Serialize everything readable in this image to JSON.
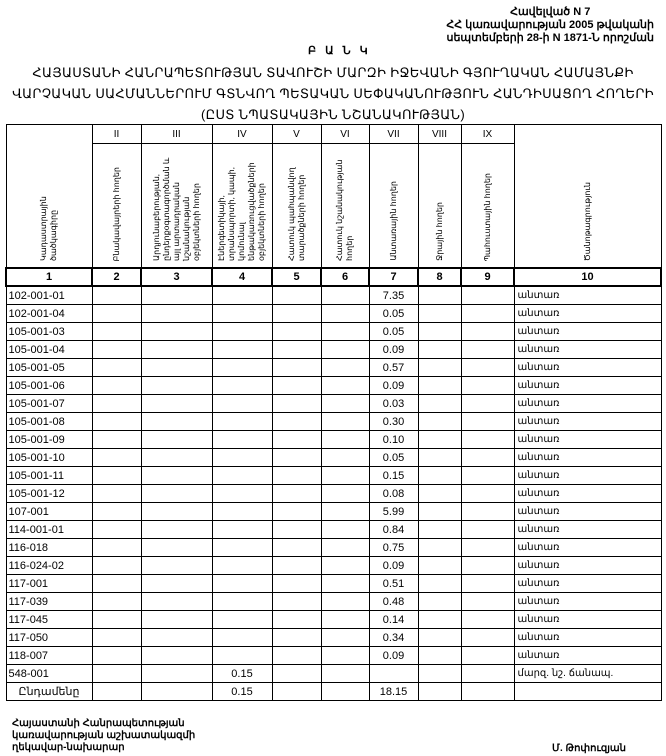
{
  "annex": {
    "line1": "Հավելված N 7",
    "line2": "ՀՀ կառավարության 2005 թվականի",
    "line3": "սեպտեմբերի 28-ի N 1871-Ն որոշման"
  },
  "bank_label": "Բ Ա Ն Կ",
  "title": {
    "line1": "ՀԱՅԱՍՏԱՆԻ ՀԱՆՐԱՊԵՏՈՒԹՅԱՆ ՏԱՎՈՒՇԻ ՄԱՐԶԻ ԻՋԵՎԱՆԻ ԳՅՈՒՂԱԿԱՆ ՀԱՄԱՅՆՔԻ",
    "line2": "ՎԱՐՉԱԿԱՆ ՍԱՀՄԱՆՆԵՐՈՒՄ ԳՏՆՎՈՂ ՊԵՏԱԿԱՆ ՍԵՓԱԿԱՆՈՒԹՅՈՒՆ ՀԱՆԴԻՍԱՑՈՂ ՀՈՂԵՐԻ",
    "line3": "(ԸՍՏ ՆՊԱՏԱԿԱՅԻՆ ՆՇԱՆԱԿՈՒԹՅԱՆ)"
  },
  "table": {
    "roman": [
      "",
      "II",
      "III",
      "IV",
      "V",
      "VI",
      "VII",
      "VIII",
      "IX",
      ""
    ],
    "headers": [
      "Կադաստրային ծածկագիրը",
      "Բնակավայրերի հողեր",
      "Արդյունաբերության, ընդերքօգտագործման և այլ արտադրական նշանակության օբյեկտների հողեր",
      "Էներգետիկայի, տրանսպորտի, կապի, կոմունալ ենթակառուցվածքների օբյեկտների հողեր",
      "Հատուկ պահպանվող տարածքների հողեր",
      "Հատուկ նշանակության հողեր",
      "Անտառային հողեր",
      "Ջրային հողեր",
      "Պահուստային հողեր",
      "Ծանոթագրություն"
    ],
    "numbers": [
      "1",
      "2",
      "3",
      "4",
      "5",
      "6",
      "7",
      "8",
      "9",
      "10"
    ],
    "rows": [
      {
        "code": "102-001-01",
        "c4": "",
        "c7": "7.35",
        "note": "անտառ"
      },
      {
        "code": "102-001-04",
        "c4": "",
        "c7": "0.05",
        "note": "անտառ"
      },
      {
        "code": "105-001-03",
        "c4": "",
        "c7": "0.05",
        "note": "անտառ"
      },
      {
        "code": "105-001-04",
        "c4": "",
        "c7": "0.09",
        "note": "անտառ"
      },
      {
        "code": "105-001-05",
        "c4": "",
        "c7": "0.57",
        "note": "անտառ"
      },
      {
        "code": "105-001-06",
        "c4": "",
        "c7": "0.09",
        "note": "անտառ"
      },
      {
        "code": "105-001-07",
        "c4": "",
        "c7": "0.03",
        "note": "անտառ"
      },
      {
        "code": "105-001-08",
        "c4": "",
        "c7": "0.30",
        "note": "անտառ"
      },
      {
        "code": "105-001-09",
        "c4": "",
        "c7": "0.10",
        "note": "անտառ"
      },
      {
        "code": "105-001-10",
        "c4": "",
        "c7": "0.05",
        "note": "անտառ"
      },
      {
        "code": "105-001-11",
        "c4": "",
        "c7": "0.15",
        "note": "անտառ"
      },
      {
        "code": "105-001-12",
        "c4": "",
        "c7": "0.08",
        "note": "անտառ"
      },
      {
        "code": "107-001",
        "c4": "",
        "c7": "5.99",
        "note": "անտառ"
      },
      {
        "code": "114-001-01",
        "c4": "",
        "c7": "0.84",
        "note": "անտառ"
      },
      {
        "code": "116-018",
        "c4": "",
        "c7": "0.75",
        "note": "անտառ"
      },
      {
        "code": "116-024-02",
        "c4": "",
        "c7": "0.09",
        "note": "անտառ"
      },
      {
        "code": "117-001",
        "c4": "",
        "c7": "0.51",
        "note": "անտառ"
      },
      {
        "code": "117-039",
        "c4": "",
        "c7": "0.48",
        "note": "անտառ"
      },
      {
        "code": "117-045",
        "c4": "",
        "c7": "0.14",
        "note": "անտառ"
      },
      {
        "code": "117-050",
        "c4": "",
        "c7": "0.34",
        "note": "անտառ"
      },
      {
        "code": "118-007",
        "c4": "",
        "c7": "0.09",
        "note": "անտառ"
      },
      {
        "code": "548-001",
        "c4": "0.15",
        "c7": "",
        "note": "մարզ. նշ. ճանապ."
      }
    ],
    "total": {
      "label": "Ընդամենը",
      "c4": "0.15",
      "c7": "18.15"
    }
  },
  "signature": {
    "line1": "Հայաստանի Հանրապետության",
    "line2": "կառավարության աշխատակազմի",
    "line3": "ղեկավար-նախարար",
    "name": "Մ. Թոփուզյան"
  }
}
